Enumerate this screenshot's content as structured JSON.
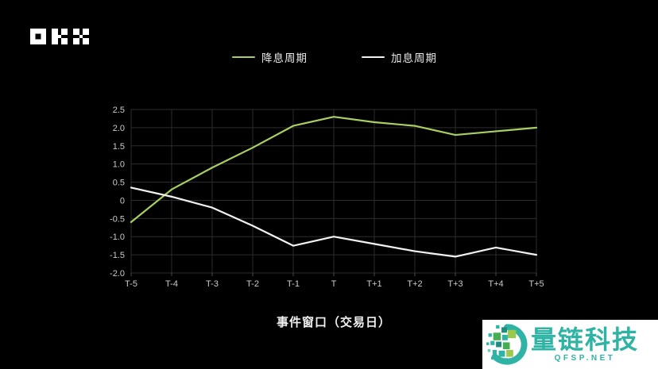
{
  "brand": {
    "logo_name": "okx-logo"
  },
  "chart_data": {
    "type": "line",
    "title": "",
    "categories": [
      "T-5",
      "T-4",
      "T-3",
      "T-2",
      "T-1",
      "T",
      "T+1",
      "T+2",
      "T+3",
      "T+4",
      "T+5"
    ],
    "series": [
      {
        "name": "降息周期",
        "color": "#a9cf63",
        "values": [
          -0.6,
          0.3,
          0.9,
          1.45,
          2.05,
          2.3,
          2.15,
          2.05,
          1.8,
          1.9,
          2.0
        ]
      },
      {
        "name": "加息周期",
        "color": "#f2f2f2",
        "values": [
          0.35,
          0.1,
          -0.2,
          -0.7,
          -1.25,
          -1.0,
          -1.2,
          -1.4,
          -1.55,
          -1.3,
          -1.5
        ]
      }
    ],
    "xlabel": "事件窗口（交易日）",
    "ylabel": "",
    "ylim": [
      -2.0,
      2.5
    ],
    "y_tick_labels": [
      "2.5",
      "2.0",
      "1.5",
      "1.0",
      "0.5",
      "0",
      "-0.5",
      "-1.0",
      "-1.5",
      "-2.0"
    ],
    "grid": true,
    "legend_position": "top",
    "colors": {
      "background": "#000000",
      "gridline": "#2d2d2d",
      "axis_tick_mark": "#4a4a4a",
      "tick_label": "#cccccc"
    }
  },
  "watermark": {
    "brand": "量链科技",
    "domain": "QFSP.NET",
    "accent": "#2eb3a5",
    "square_green": "#45ad52",
    "square_lime": "#9bc94e"
  }
}
